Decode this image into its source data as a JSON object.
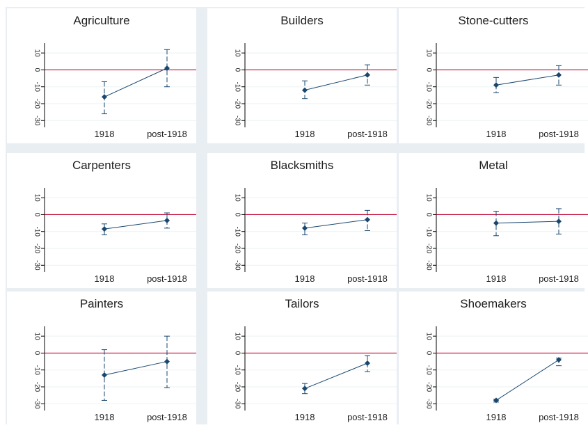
{
  "chart_data": [
    {
      "type": "scatter",
      "title": "Agriculture",
      "categories": [
        "1918",
        "post-1918"
      ],
      "yticks": [
        10,
        0,
        -10,
        -20,
        -30
      ],
      "ylim": [
        -34,
        15
      ],
      "reference_line": 0,
      "points": [
        {
          "x": "1918",
          "y": -16,
          "ci_low": -26,
          "ci_high": -7
        },
        {
          "x": "post-1918",
          "y": 1,
          "ci_low": -10,
          "ci_high": 12
        }
      ]
    },
    {
      "type": "scatter",
      "title": "Builders",
      "categories": [
        "1918",
        "post-1918"
      ],
      "yticks": [
        10,
        0,
        -10,
        -20,
        -30
      ],
      "ylim": [
        -34,
        15
      ],
      "reference_line": 0,
      "points": [
        {
          "x": "1918",
          "y": -12,
          "ci_low": -17,
          "ci_high": -6.5
        },
        {
          "x": "post-1918",
          "y": -3,
          "ci_low": -9,
          "ci_high": 3
        }
      ]
    },
    {
      "type": "scatter",
      "title": "Stone-cutters",
      "categories": [
        "1918",
        "post-1918"
      ],
      "yticks": [
        10,
        0,
        -10,
        -20,
        -30
      ],
      "ylim": [
        -34,
        15
      ],
      "reference_line": 0,
      "points": [
        {
          "x": "1918",
          "y": -9,
          "ci_low": -13.5,
          "ci_high": -4.5
        },
        {
          "x": "post-1918",
          "y": -3,
          "ci_low": -9,
          "ci_high": 2.5
        }
      ]
    },
    {
      "type": "scatter",
      "title": "Carpenters",
      "categories": [
        "1918",
        "post-1918"
      ],
      "yticks": [
        10,
        0,
        -10,
        -20,
        -30
      ],
      "ylim": [
        -34,
        15
      ],
      "reference_line": 0,
      "points": [
        {
          "x": "1918",
          "y": -8.5,
          "ci_low": -12,
          "ci_high": -5.5
        },
        {
          "x": "post-1918",
          "y": -3.5,
          "ci_low": -8,
          "ci_high": 1
        }
      ]
    },
    {
      "type": "scatter",
      "title": "Blacksmiths",
      "categories": [
        "1918",
        "post-1918"
      ],
      "yticks": [
        10,
        0,
        -10,
        -20,
        -30
      ],
      "ylim": [
        -34,
        15
      ],
      "reference_line": 0,
      "points": [
        {
          "x": "1918",
          "y": -8,
          "ci_low": -12,
          "ci_high": -5
        },
        {
          "x": "post-1918",
          "y": -3,
          "ci_low": -9.5,
          "ci_high": 2.5
        }
      ]
    },
    {
      "type": "scatter",
      "title": "Metal",
      "categories": [
        "1918",
        "post-1918"
      ],
      "yticks": [
        10,
        0,
        -10,
        -20,
        -30
      ],
      "ylim": [
        -34,
        15
      ],
      "reference_line": 0,
      "points": [
        {
          "x": "1918",
          "y": -5,
          "ci_low": -12.5,
          "ci_high": 2
        },
        {
          "x": "post-1918",
          "y": -4,
          "ci_low": -11.5,
          "ci_high": 3.5
        }
      ]
    },
    {
      "type": "scatter",
      "title": "Painters",
      "categories": [
        "1918",
        "post-1918"
      ],
      "yticks": [
        10,
        0,
        -10,
        -20,
        -30
      ],
      "ylim": [
        -34,
        15
      ],
      "reference_line": 0,
      "points": [
        {
          "x": "1918",
          "y": -13,
          "ci_low": -28,
          "ci_high": 2
        },
        {
          "x": "post-1918",
          "y": -5,
          "ci_low": -20.5,
          "ci_high": 10
        }
      ]
    },
    {
      "type": "scatter",
      "title": "Tailors",
      "categories": [
        "1918",
        "post-1918"
      ],
      "yticks": [
        10,
        0,
        -10,
        -20,
        -30
      ],
      "ylim": [
        -34,
        15
      ],
      "reference_line": 0,
      "points": [
        {
          "x": "1918",
          "y": -21,
          "ci_low": -24,
          "ci_high": -18
        },
        {
          "x": "post-1918",
          "y": -6,
          "ci_low": -11,
          "ci_high": -1.5
        }
      ]
    },
    {
      "type": "scatter",
      "title": "Shoemakers",
      "categories": [
        "1918",
        "post-1918"
      ],
      "yticks": [
        10,
        0,
        -10,
        -20,
        -30
      ],
      "ylim": [
        -34,
        15
      ],
      "reference_line": 0,
      "points": [
        {
          "x": "1918",
          "y": -28,
          "ci_low": -29,
          "ci_high": -27.3
        },
        {
          "x": "post-1918",
          "y": -4,
          "ci_low": -7.5,
          "ci_high": -3
        }
      ]
    }
  ],
  "colors": {
    "marker": "#1a476f",
    "reference_line": "#c10534",
    "axis": "#000000",
    "grid": "#eaf2f3",
    "panel_bg": "#ffffff",
    "outer_bg": "#e9eef3"
  }
}
